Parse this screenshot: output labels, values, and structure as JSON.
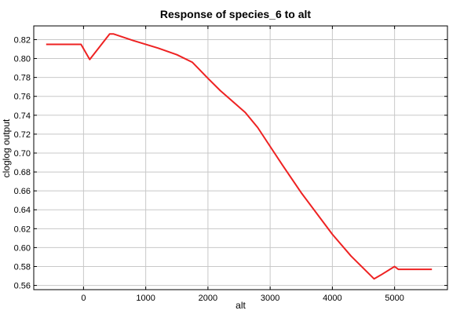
{
  "chart_data": {
    "type": "line",
    "title": "Response of species_6 to alt",
    "xlabel": "alt",
    "ylabel": "cloglog output",
    "xlim": [
      -800,
      5850
    ],
    "ylim": [
      0.5555,
      0.8345
    ],
    "x_ticks": [
      0,
      1000,
      2000,
      3000,
      4000,
      5000
    ],
    "y_ticks": [
      0.56,
      0.58,
      0.6,
      0.62,
      0.64,
      0.66,
      0.68,
      0.7,
      0.72,
      0.74,
      0.76,
      0.78,
      0.8,
      0.82
    ],
    "grid": true,
    "series": [
      {
        "color": "#ee2222",
        "x": [
          -600,
          -40,
          100,
          420,
          480,
          800,
          1200,
          1500,
          1750,
          2000,
          2200,
          2600,
          2800,
          3000,
          3200,
          3500,
          4000,
          4300,
          4670,
          4780,
          5000,
          5060,
          5600
        ],
        "y": [
          0.815,
          0.815,
          0.799,
          0.826,
          0.826,
          0.819,
          0.811,
          0.804,
          0.796,
          0.779,
          0.766,
          0.743,
          0.727,
          0.707,
          0.687,
          0.658,
          0.614,
          0.591,
          0.567,
          0.571,
          0.58,
          0.577,
          0.577
        ]
      }
    ]
  }
}
